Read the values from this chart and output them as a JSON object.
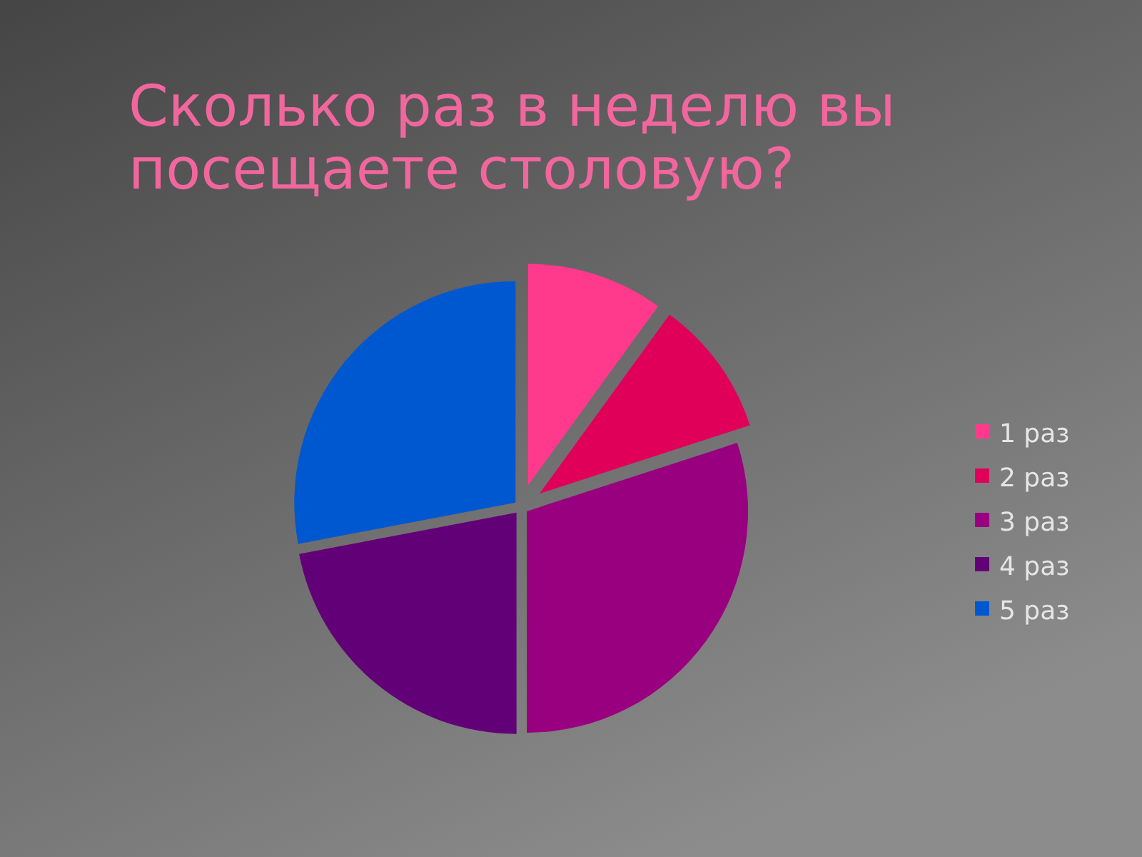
{
  "chart_data": {
    "type": "pie",
    "title": "Сколько раз в неделю вы посещаете столовую?",
    "categories": [
      "1 раз",
      "2 раз",
      "3 раз",
      "4 раз",
      "5 раз"
    ],
    "values": [
      10,
      10,
      30,
      22,
      28
    ],
    "colors": [
      "#ff3a8c",
      "#e0005a",
      "#990080",
      "#620078",
      "#0058d0"
    ],
    "legend": "right"
  }
}
